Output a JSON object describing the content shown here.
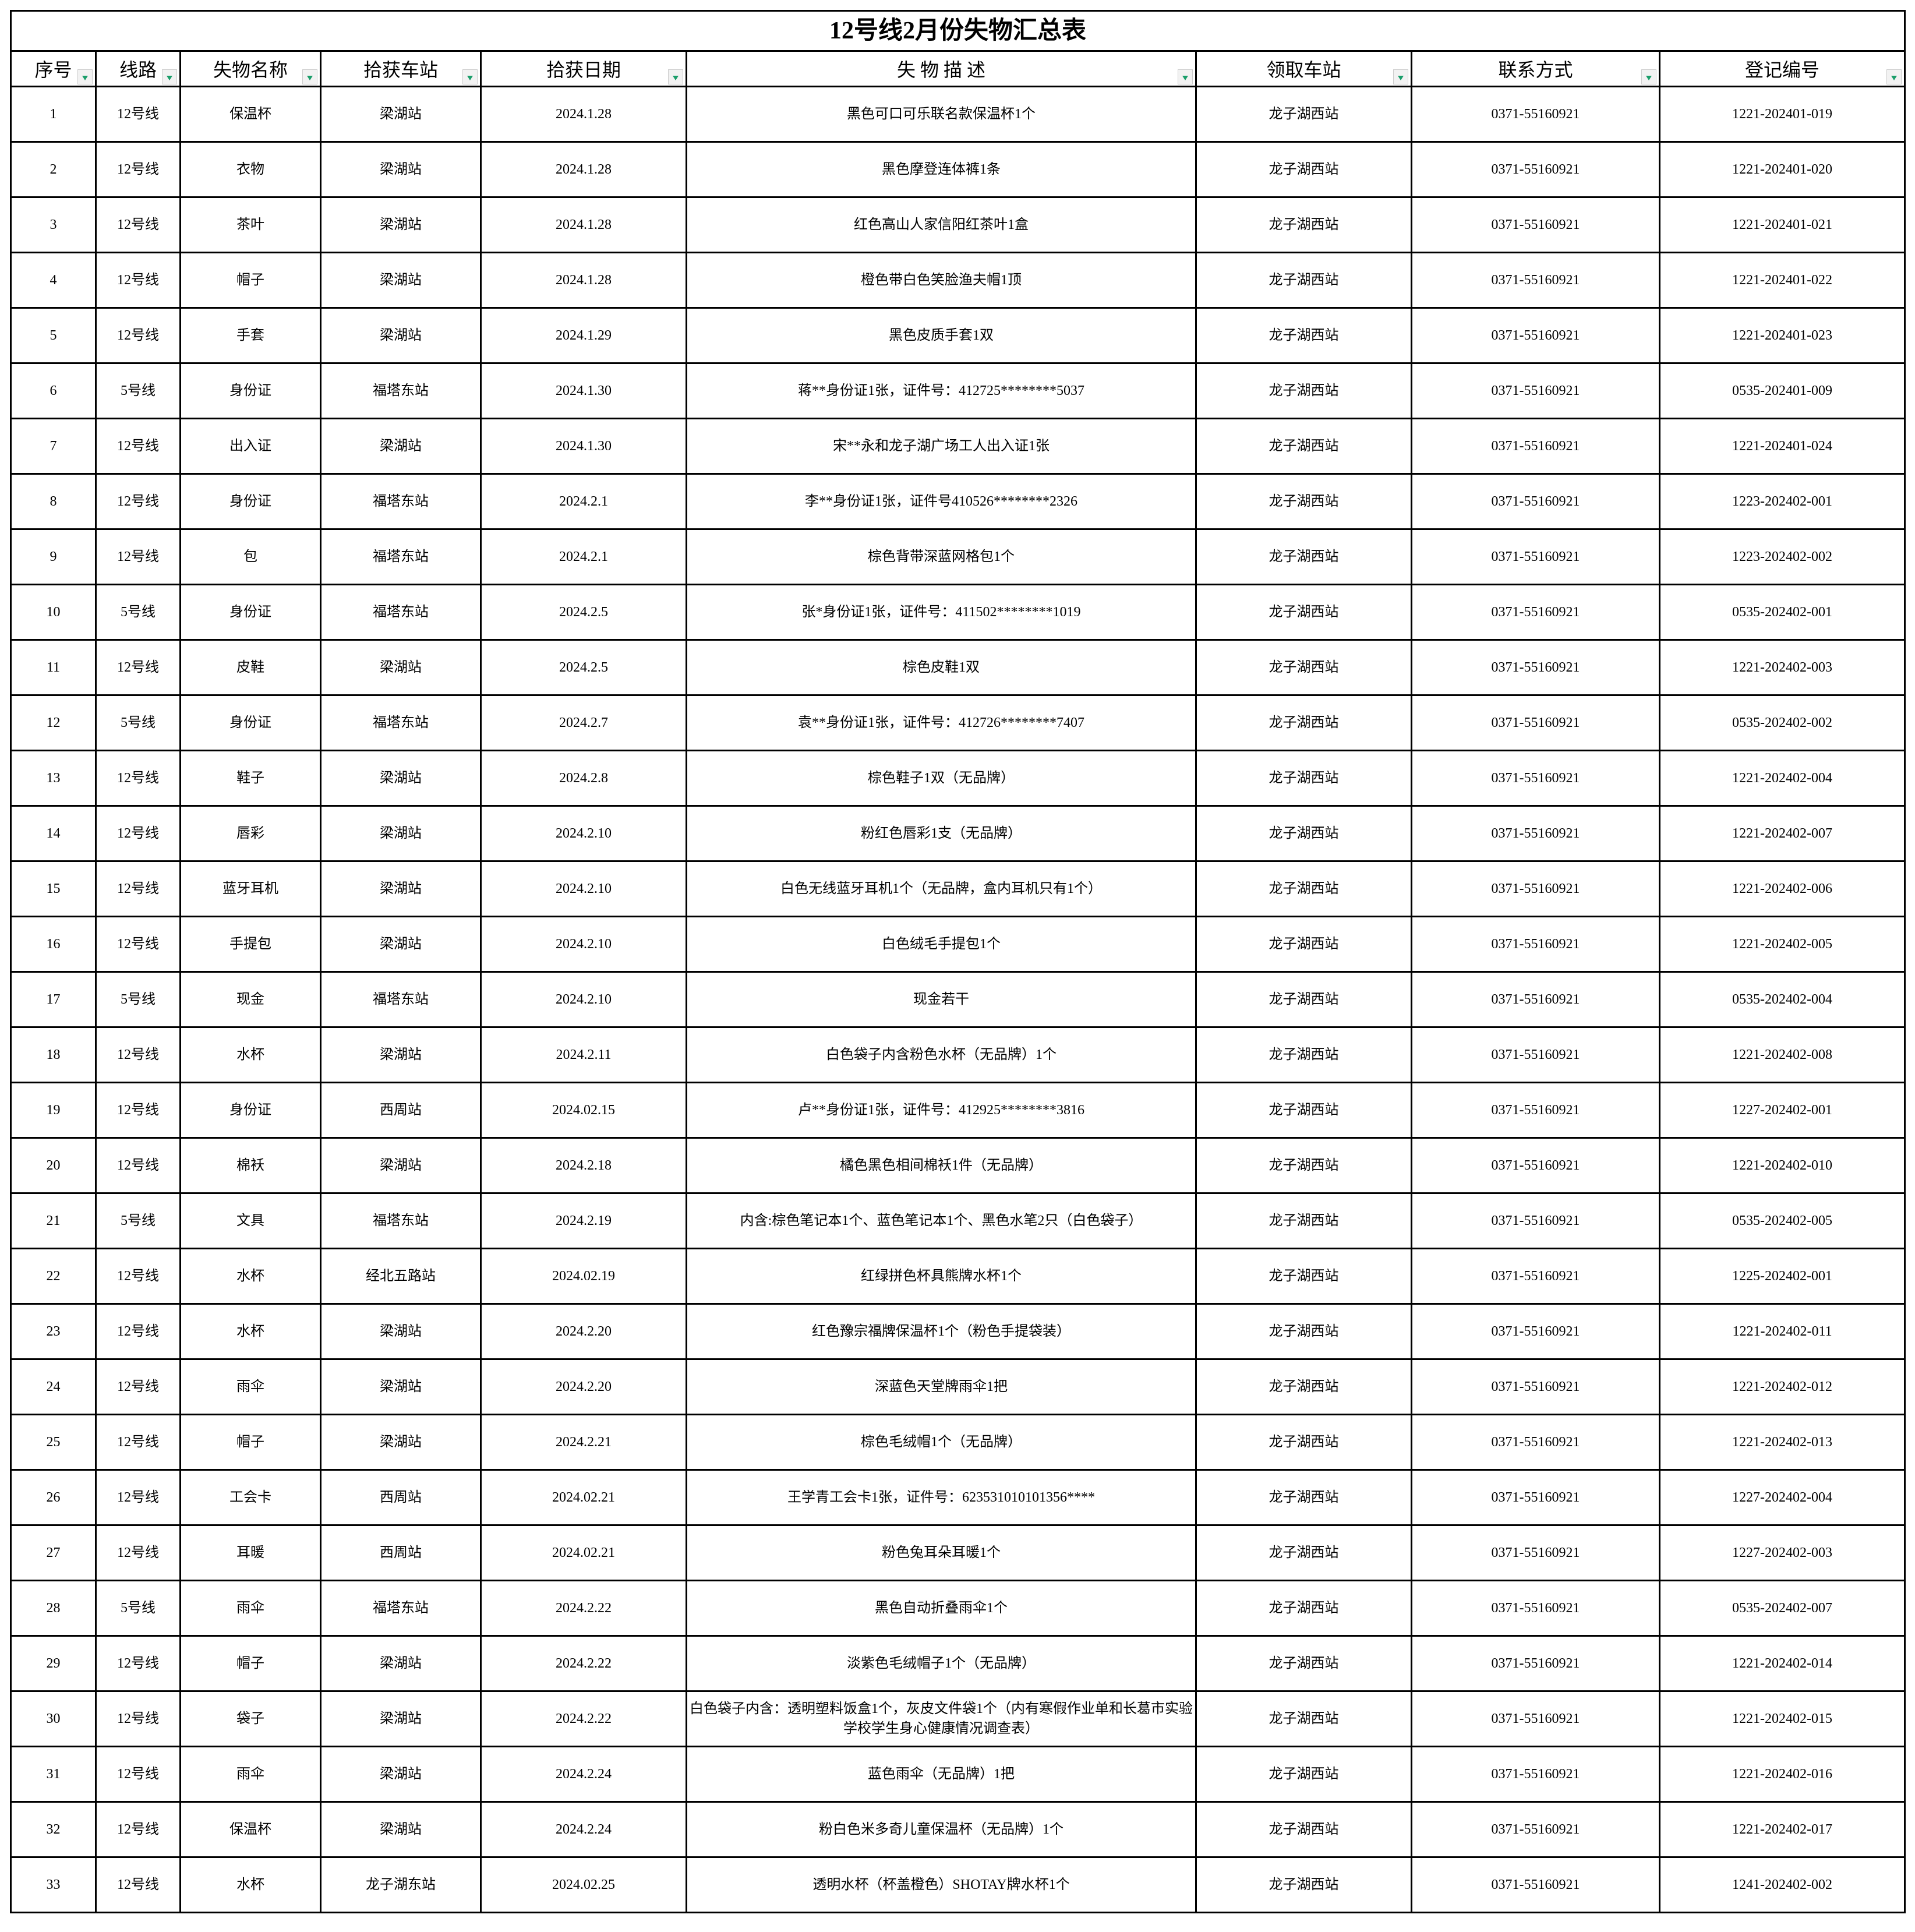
{
  "title": "12号线2月份失物汇总表",
  "headers": [
    "序号",
    "线路",
    "失物名称",
    "拾获车站",
    "拾获日期",
    "失 物 描 述",
    "领取车站",
    "联系方式",
    "登记编号"
  ],
  "filter_icon_color": "#1a9e6a",
  "rows": [
    [
      "1",
      "12号线",
      "保温杯",
      "梁湖站",
      "2024.1.28",
      "黑色可口可乐联名款保温杯1个",
      "龙子湖西站",
      "0371-55160921",
      "1221-202401-019"
    ],
    [
      "2",
      "12号线",
      "衣物",
      "梁湖站",
      "2024.1.28",
      "黑色摩登连体裤1条",
      "龙子湖西站",
      "0371-55160921",
      "1221-202401-020"
    ],
    [
      "3",
      "12号线",
      "茶叶",
      "梁湖站",
      "2024.1.28",
      "红色高山人家信阳红茶叶1盒",
      "龙子湖西站",
      "0371-55160921",
      "1221-202401-021"
    ],
    [
      "4",
      "12号线",
      "帽子",
      "梁湖站",
      "2024.1.28",
      "橙色带白色笑脸渔夫帽1顶",
      "龙子湖西站",
      "0371-55160921",
      "1221-202401-022"
    ],
    [
      "5",
      "12号线",
      "手套",
      "梁湖站",
      "2024.1.29",
      "黑色皮质手套1双",
      "龙子湖西站",
      "0371-55160921",
      "1221-202401-023"
    ],
    [
      "6",
      "5号线",
      "身份证",
      "福塔东站",
      "2024.1.30",
      "蒋**身份证1张，证件号：412725********5037",
      "龙子湖西站",
      "0371-55160921",
      "0535-202401-009"
    ],
    [
      "7",
      "12号线",
      "出入证",
      "梁湖站",
      "2024.1.30",
      "宋**永和龙子湖广场工人出入证1张",
      "龙子湖西站",
      "0371-55160921",
      "1221-202401-024"
    ],
    [
      "8",
      "12号线",
      "身份证",
      "福塔东站",
      "2024.2.1",
      "李**身份证1张，证件号410526********2326",
      "龙子湖西站",
      "0371-55160921",
      "1223-202402-001"
    ],
    [
      "9",
      "12号线",
      "包",
      "福塔东站",
      "2024.2.1",
      "棕色背带深蓝网格包1个",
      "龙子湖西站",
      "0371-55160921",
      "1223-202402-002"
    ],
    [
      "10",
      "5号线",
      "身份证",
      "福塔东站",
      "2024.2.5",
      "张*身份证1张，证件号：411502********1019",
      "龙子湖西站",
      "0371-55160921",
      "0535-202402-001"
    ],
    [
      "11",
      "12号线",
      "皮鞋",
      "梁湖站",
      "2024.2.5",
      "棕色皮鞋1双",
      "龙子湖西站",
      "0371-55160921",
      "1221-202402-003"
    ],
    [
      "12",
      "5号线",
      "身份证",
      "福塔东站",
      "2024.2.7",
      "袁**身份证1张，证件号：412726********7407",
      "龙子湖西站",
      "0371-55160921",
      "0535-202402-002"
    ],
    [
      "13",
      "12号线",
      "鞋子",
      "梁湖站",
      "2024.2.8",
      "棕色鞋子1双（无品牌）",
      "龙子湖西站",
      "0371-55160921",
      "1221-202402-004"
    ],
    [
      "14",
      "12号线",
      "唇彩",
      "梁湖站",
      "2024.2.10",
      "粉红色唇彩1支（无品牌）",
      "龙子湖西站",
      "0371-55160921",
      "1221-202402-007"
    ],
    [
      "15",
      "12号线",
      "蓝牙耳机",
      "梁湖站",
      "2024.2.10",
      "白色无线蓝牙耳机1个（无品牌，盒内耳机只有1个）",
      "龙子湖西站",
      "0371-55160921",
      "1221-202402-006"
    ],
    [
      "16",
      "12号线",
      "手提包",
      "梁湖站",
      "2024.2.10",
      "白色绒毛手提包1个",
      "龙子湖西站",
      "0371-55160921",
      "1221-202402-005"
    ],
    [
      "17",
      "5号线",
      "现金",
      "福塔东站",
      "2024.2.10",
      "现金若干",
      "龙子湖西站",
      "0371-55160921",
      "0535-202402-004"
    ],
    [
      "18",
      "12号线",
      "水杯",
      "梁湖站",
      "2024.2.11",
      "白色袋子内含粉色水杯（无品牌）1个",
      "龙子湖西站",
      "0371-55160921",
      "1221-202402-008"
    ],
    [
      "19",
      "12号线",
      "身份证",
      "西周站",
      "2024.02.15",
      "卢**身份证1张，证件号：412925********3816",
      "龙子湖西站",
      "0371-55160921",
      "1227-202402-001"
    ],
    [
      "20",
      "12号线",
      "棉袄",
      "梁湖站",
      "2024.2.18",
      "橘色黑色相间棉袄1件（无品牌）",
      "龙子湖西站",
      "0371-55160921",
      "1221-202402-010"
    ],
    [
      "21",
      "5号线",
      "文具",
      "福塔东站",
      "2024.2.19",
      "内含:棕色笔记本1个、蓝色笔记本1个、黑色水笔2只（白色袋子）",
      "龙子湖西站",
      "0371-55160921",
      "0535-202402-005"
    ],
    [
      "22",
      "12号线",
      "水杯",
      "经北五路站",
      "2024.02.19",
      "红绿拼色杯具熊牌水杯1个",
      "龙子湖西站",
      "0371-55160921",
      "1225-202402-001"
    ],
    [
      "23",
      "12号线",
      "水杯",
      "梁湖站",
      "2024.2.20",
      "红色豫宗福牌保温杯1个（粉色手提袋装）",
      "龙子湖西站",
      "0371-55160921",
      "1221-202402-011"
    ],
    [
      "24",
      "12号线",
      "雨伞",
      "梁湖站",
      "2024.2.20",
      "深蓝色天堂牌雨伞1把",
      "龙子湖西站",
      "0371-55160921",
      "1221-202402-012"
    ],
    [
      "25",
      "12号线",
      "帽子",
      "梁湖站",
      "2024.2.21",
      "棕色毛绒帽1个（无品牌）",
      "龙子湖西站",
      "0371-55160921",
      "1221-202402-013"
    ],
    [
      "26",
      "12号线",
      "工会卡",
      "西周站",
      "2024.02.21",
      "王学青工会卡1张，证件号：623531010101356****",
      "龙子湖西站",
      "0371-55160921",
      "1227-202402-004"
    ],
    [
      "27",
      "12号线",
      "耳暖",
      "西周站",
      "2024.02.21",
      "粉色兔耳朵耳暖1个",
      "龙子湖西站",
      "0371-55160921",
      "1227-202402-003"
    ],
    [
      "28",
      "5号线",
      "雨伞",
      "福塔东站",
      "2024.2.22",
      "黑色自动折叠雨伞1个",
      "龙子湖西站",
      "0371-55160921",
      "0535-202402-007"
    ],
    [
      "29",
      "12号线",
      "帽子",
      "梁湖站",
      "2024.2.22",
      "淡紫色毛绒帽子1个（无品牌）",
      "龙子湖西站",
      "0371-55160921",
      "1221-202402-014"
    ],
    [
      "30",
      "12号线",
      "袋子",
      "梁湖站",
      "2024.2.22",
      "白色袋子内含：透明塑料饭盒1个，灰皮文件袋1个（内有寒假作业单和长葛市实验学校学生身心健康情况调查表）",
      "龙子湖西站",
      "0371-55160921",
      "1221-202402-015"
    ],
    [
      "31",
      "12号线",
      "雨伞",
      "梁湖站",
      "2024.2.24",
      "蓝色雨伞（无品牌）1把",
      "龙子湖西站",
      "0371-55160921",
      "1221-202402-016"
    ],
    [
      "32",
      "12号线",
      "保温杯",
      "梁湖站",
      "2024.2.24",
      "粉白色米多奇儿童保温杯（无品牌）1个",
      "龙子湖西站",
      "0371-55160921",
      "1221-202402-017"
    ],
    [
      "33",
      "12号线",
      "水杯",
      "龙子湖东站",
      "2024.02.25",
      "透明水杯（杯盖橙色）SHOTAY牌水杯1个",
      "龙子湖西站",
      "0371-55160921",
      "1241-202402-002"
    ]
  ]
}
